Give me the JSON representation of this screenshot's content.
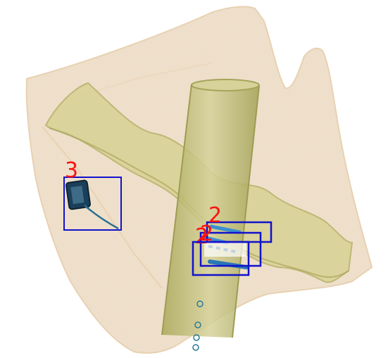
{
  "image": {
    "description_kind": "x-ray scan",
    "colors": {
      "background": "#ffffff",
      "bag": "#f6dfc4",
      "tube": "#c9c27c",
      "tube_edge": "#a5a459",
      "box": "#1111cc",
      "label": "#ff1111",
      "object": "#1b3f5a"
    }
  },
  "detections": [
    {
      "label": "3"
    },
    {
      "label": "2"
    },
    {
      "label": "2"
    },
    {
      "label": "2"
    }
  ]
}
